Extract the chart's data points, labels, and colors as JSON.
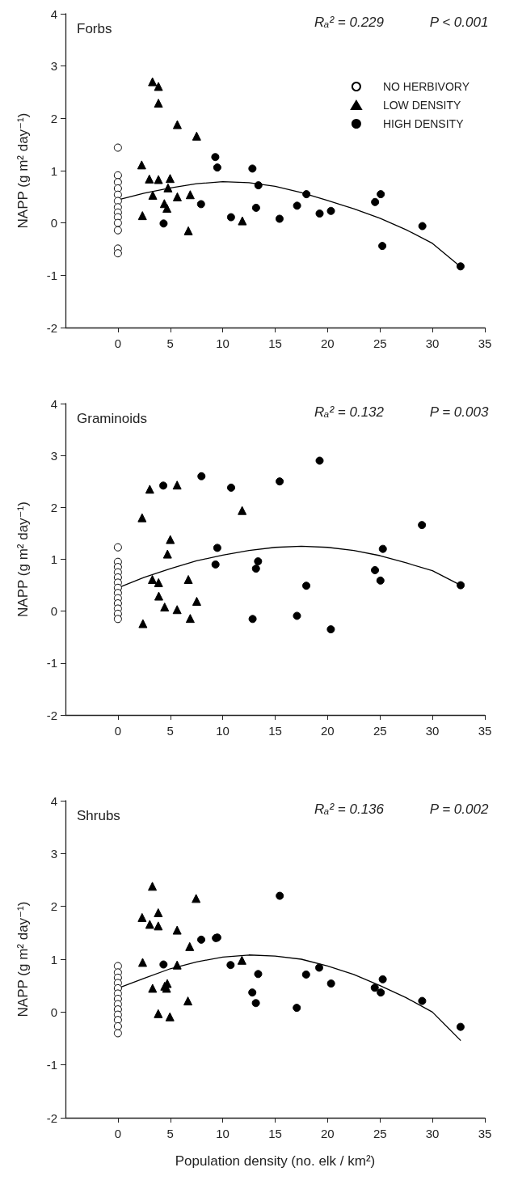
{
  "chart_data": [
    {
      "type": "scatter",
      "title": "Forbs",
      "ylabel": "NAPP (g m² day⁻¹)",
      "annotations": [
        "Rₐ² = 0.229",
        "P < 0.001"
      ],
      "xlim": [
        -5,
        35
      ],
      "xticks": [
        0,
        5,
        10,
        15,
        20,
        25,
        30,
        35
      ],
      "ylim": [
        -2,
        4
      ],
      "yticks": [
        -2,
        -1,
        0,
        1,
        2,
        3,
        4
      ],
      "grid": false,
      "legend": "top right",
      "series": [
        {
          "name": "NO HERBIVORY",
          "color": "#ffffff",
          "marker": "circle",
          "x": [
            0,
            0,
            0,
            0,
            0,
            0,
            0,
            0,
            0,
            0,
            0,
            0,
            0
          ],
          "values": [
            1.44,
            0.91,
            0.78,
            0.66,
            0.54,
            0.42,
            0.3,
            0.2,
            0.11,
            0.0,
            -0.14,
            -0.49,
            -0.58
          ]
        },
        {
          "name": "LOW DENSITY",
          "color": "#000000",
          "marker": "triangle",
          "x": [
            3.3,
            3.87,
            3.87,
            5.67,
            7.51,
            2.27,
            3.0,
            3.87,
            4.98,
            4.78,
            3.33,
            5.67,
            6.9,
            4.43,
            4.68,
            2.34,
            11.87,
            6.72
          ],
          "values": [
            2.7,
            2.61,
            2.29,
            1.88,
            1.66,
            1.11,
            0.84,
            0.83,
            0.85,
            0.67,
            0.53,
            0.5,
            0.54,
            0.37,
            0.28,
            0.14,
            0.04,
            -0.15
          ]
        },
        {
          "name": "HIGH DENSITY",
          "color": "#000000",
          "marker": "circle",
          "x": [
            9.29,
            9.48,
            12.83,
            13.4,
            17.98,
            25.07,
            24.53,
            7.93,
            17.09,
            13.18,
            10.79,
            15.42,
            19.24,
            20.32,
            4.36,
            29.04,
            25.22,
            32.68
          ],
          "values": [
            1.26,
            1.06,
            1.04,
            0.72,
            0.55,
            0.55,
            0.4,
            0.36,
            0.33,
            0.29,
            0.11,
            0.08,
            0.18,
            0.23,
            -0.01,
            -0.06,
            -0.44,
            -0.83
          ]
        },
        {
          "type": "line",
          "color": "#000000",
          "marker": "none",
          "x": [
            0,
            2.5,
            5,
            7.5,
            10,
            12.5,
            15,
            17.5,
            20,
            22.5,
            25,
            27.5,
            30,
            32.7
          ],
          "values": [
            0.44,
            0.57,
            0.67,
            0.75,
            0.79,
            0.77,
            0.7,
            0.58,
            0.43,
            0.27,
            0.09,
            -0.13,
            -0.39,
            -0.84
          ]
        }
      ]
    },
    {
      "type": "scatter",
      "title": "Graminoids",
      "ylabel": "NAPP (g m² day⁻¹)",
      "annotations": [
        "Rₐ² = 0.132",
        "P = 0.003"
      ],
      "xlim": [
        -5,
        35
      ],
      "xticks": [
        0,
        5,
        10,
        15,
        20,
        25,
        30,
        35
      ],
      "ylim": [
        -2,
        4
      ],
      "yticks": [
        -2,
        -1,
        0,
        1,
        2,
        3,
        4
      ],
      "grid": false,
      "legend": false,
      "series": [
        {
          "color": "#ffffff",
          "marker": "circle",
          "x": [
            0,
            0,
            0,
            0,
            0,
            0,
            0,
            0,
            0,
            0,
            0,
            0,
            0
          ],
          "values": [
            1.23,
            0.95,
            0.85,
            0.75,
            0.65,
            0.55,
            0.45,
            0.35,
            0.25,
            0.15,
            0.05,
            -0.05,
            -0.15
          ]
        },
        {
          "color": "#000000",
          "marker": "triangle",
          "x": [
            3.04,
            5.65,
            2.31,
            5.0,
            4.73,
            11.85,
            3.29,
            3.88,
            3.9,
            6.72,
            7.52,
            4.46,
            5.65,
            6.9,
            2.39
          ],
          "values": [
            2.35,
            2.43,
            1.8,
            1.38,
            1.1,
            1.94,
            0.61,
            0.55,
            0.29,
            0.61,
            0.19,
            0.08,
            0.03,
            -0.14,
            -0.24
          ]
        },
        {
          "color": "#000000",
          "marker": "circle",
          "x": [
            4.33,
            7.97,
            10.8,
            15.43,
            19.24,
            29.0,
            9.48,
            25.27,
            9.31,
            13.37,
            13.17,
            24.52,
            25.04,
            17.97,
            32.69,
            12.85,
            17.08,
            20.31
          ],
          "values": [
            2.42,
            2.6,
            2.38,
            2.5,
            2.9,
            1.66,
            1.22,
            1.2,
            0.9,
            0.96,
            0.82,
            0.79,
            0.59,
            0.49,
            0.5,
            -0.15,
            -0.09,
            -0.35
          ]
        },
        {
          "type": "line",
          "color": "#000000",
          "marker": "none",
          "x": [
            0,
            2.5,
            5,
            7.5,
            10,
            12.5,
            15,
            17.5,
            20,
            22.5,
            25,
            27.5,
            30,
            32.7
          ],
          "values": [
            0.45,
            0.65,
            0.82,
            0.97,
            1.08,
            1.17,
            1.23,
            1.25,
            1.23,
            1.17,
            1.07,
            0.93,
            0.78,
            0.5
          ]
        }
      ]
    },
    {
      "type": "scatter",
      "title": "Shrubs",
      "ylabel": "NAPP (g m² day⁻¹)",
      "xlabel": "Population density (no. elk / km²)",
      "annotations": [
        "Rₐ² = 0.136",
        "P = 0.002"
      ],
      "xlim": [
        -5,
        35
      ],
      "xticks": [
        0,
        5,
        10,
        15,
        20,
        25,
        30,
        35
      ],
      "ylim": [
        -2,
        4
      ],
      "yticks": [
        -2,
        -1,
        0,
        1,
        2,
        3,
        4
      ],
      "grid": false,
      "legend": false,
      "series": [
        {
          "color": "#ffffff",
          "marker": "circle",
          "x": [
            0,
            0,
            0,
            0,
            0,
            0,
            0,
            0,
            0,
            0,
            0,
            0,
            0
          ],
          "values": [
            0.87,
            0.75,
            0.65,
            0.55,
            0.45,
            0.35,
            0.25,
            0.15,
            0.05,
            -0.05,
            -0.15,
            -0.27,
            -0.4
          ]
        },
        {
          "color": "#000000",
          "marker": "triangle",
          "x": [
            3.29,
            7.46,
            3.85,
            2.31,
            3.04,
            3.85,
            5.65,
            6.85,
            2.36,
            5.65,
            11.83,
            3.31,
            4.47,
            4.71,
            4.64,
            6.68,
            3.85,
            4.96
          ],
          "values": [
            2.38,
            2.15,
            1.88,
            1.79,
            1.66,
            1.63,
            1.55,
            1.24,
            0.94,
            0.89,
            0.98,
            0.45,
            0.49,
            0.54,
            0.45,
            0.21,
            -0.03,
            -0.09
          ]
        },
        {
          "color": "#000000",
          "marker": "circle",
          "x": [
            15.44,
            7.95,
            9.35,
            9.48,
            4.35,
            10.75,
            13.38,
            17.95,
            19.2,
            20.33,
            25.26,
            24.5,
            25.07,
            12.82,
            13.16,
            17.06,
            29.02,
            32.68
          ],
          "values": [
            2.2,
            1.37,
            1.4,
            1.41,
            0.9,
            0.89,
            0.72,
            0.71,
            0.84,
            0.54,
            0.62,
            0.46,
            0.37,
            0.37,
            0.17,
            0.08,
            0.21,
            -0.28
          ]
        },
        {
          "type": "line",
          "color": "#000000",
          "marker": "none",
          "x": [
            0,
            2.5,
            5,
            7.5,
            10,
            12.5,
            15,
            17.5,
            20,
            22.5,
            25,
            27.5,
            30,
            32.7
          ],
          "values": [
            0.45,
            0.64,
            0.82,
            0.95,
            1.04,
            1.08,
            1.06,
            1.0,
            0.87,
            0.71,
            0.5,
            0.27,
            0.0,
            -0.54
          ]
        }
      ]
    }
  ]
}
